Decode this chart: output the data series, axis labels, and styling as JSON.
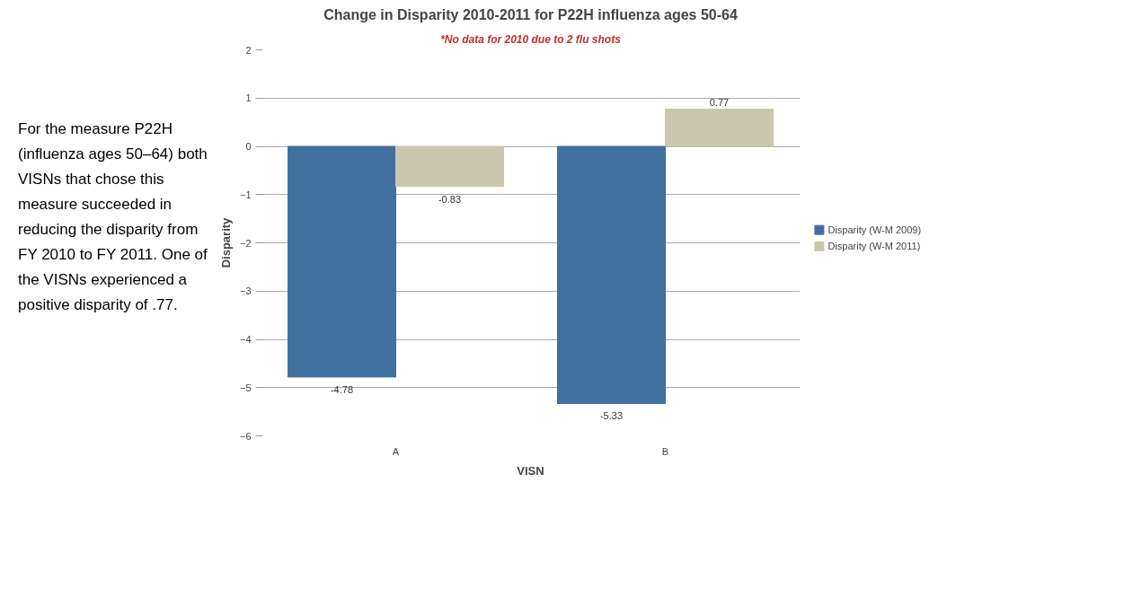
{
  "chart_data": {
    "type": "bar",
    "title": "Change in Disparity 2010-2011 for P22H influenza ages 50-64",
    "subtitle": "*No data for 2010 due to 2 flu shots",
    "xlabel": "VISN",
    "ylabel": "Disparity",
    "categories": [
      "A",
      "B"
    ],
    "series": [
      {
        "name": "Disparity (W-M 2009)",
        "color": "#41709f",
        "values": [
          -4.78,
          -5.33
        ]
      },
      {
        "name": "Disparity (W-M 2011)",
        "color": "#c9c7ae",
        "values": [
          -0.83,
          0.77
        ]
      }
    ],
    "ylim": [
      -6,
      2
    ],
    "yticks": [
      -6,
      -5,
      -4,
      -3,
      -2,
      -1,
      0,
      1,
      2
    ],
    "grid": "y",
    "legend": "right",
    "data_labels": true,
    "annotations": [
      "For the measure P22H (influenza ages 50–64) both VISNs that chose this measure succeeded in reducing the disparity from FY 2010 to FY 2011. One of the VISNs experienced a positive disparity of .77."
    ]
  }
}
